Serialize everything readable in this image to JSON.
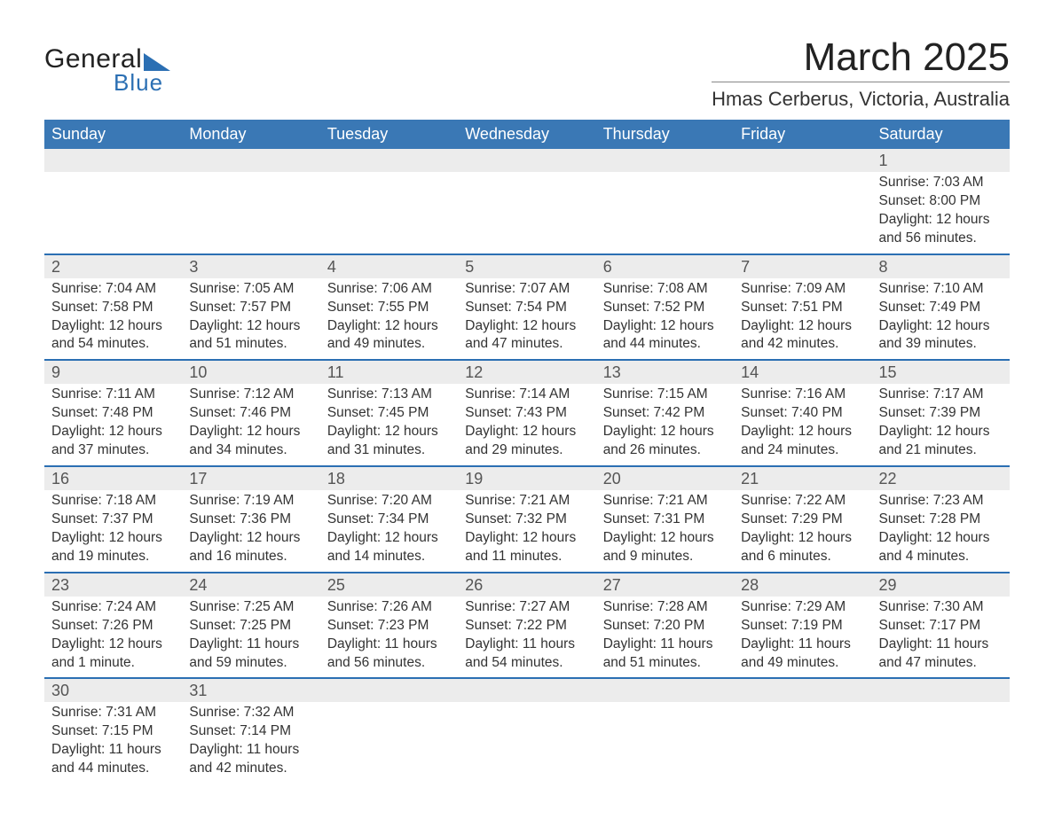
{
  "brand": {
    "general": "General",
    "blue": "Blue"
  },
  "title": "March 2025",
  "location": "Hmas Cerberus, Victoria, Australia",
  "colors": {
    "header_bg": "#3a78b5",
    "header_text": "#ffffff",
    "row_separator": "#2b6fb3",
    "daynum_bg": "#ececec",
    "text": "#333333"
  },
  "weekdays": [
    "Sunday",
    "Monday",
    "Tuesday",
    "Wednesday",
    "Thursday",
    "Friday",
    "Saturday"
  ],
  "weeks": [
    [
      null,
      null,
      null,
      null,
      null,
      null,
      {
        "d": "1",
        "sr": "Sunrise: 7:03 AM",
        "ss": "Sunset: 8:00 PM",
        "dl": "Daylight: 12 hours and 56 minutes."
      }
    ],
    [
      {
        "d": "2",
        "sr": "Sunrise: 7:04 AM",
        "ss": "Sunset: 7:58 PM",
        "dl": "Daylight: 12 hours and 54 minutes."
      },
      {
        "d": "3",
        "sr": "Sunrise: 7:05 AM",
        "ss": "Sunset: 7:57 PM",
        "dl": "Daylight: 12 hours and 51 minutes."
      },
      {
        "d": "4",
        "sr": "Sunrise: 7:06 AM",
        "ss": "Sunset: 7:55 PM",
        "dl": "Daylight: 12 hours and 49 minutes."
      },
      {
        "d": "5",
        "sr": "Sunrise: 7:07 AM",
        "ss": "Sunset: 7:54 PM",
        "dl": "Daylight: 12 hours and 47 minutes."
      },
      {
        "d": "6",
        "sr": "Sunrise: 7:08 AM",
        "ss": "Sunset: 7:52 PM",
        "dl": "Daylight: 12 hours and 44 minutes."
      },
      {
        "d": "7",
        "sr": "Sunrise: 7:09 AM",
        "ss": "Sunset: 7:51 PM",
        "dl": "Daylight: 12 hours and 42 minutes."
      },
      {
        "d": "8",
        "sr": "Sunrise: 7:10 AM",
        "ss": "Sunset: 7:49 PM",
        "dl": "Daylight: 12 hours and 39 minutes."
      }
    ],
    [
      {
        "d": "9",
        "sr": "Sunrise: 7:11 AM",
        "ss": "Sunset: 7:48 PM",
        "dl": "Daylight: 12 hours and 37 minutes."
      },
      {
        "d": "10",
        "sr": "Sunrise: 7:12 AM",
        "ss": "Sunset: 7:46 PM",
        "dl": "Daylight: 12 hours and 34 minutes."
      },
      {
        "d": "11",
        "sr": "Sunrise: 7:13 AM",
        "ss": "Sunset: 7:45 PM",
        "dl": "Daylight: 12 hours and 31 minutes."
      },
      {
        "d": "12",
        "sr": "Sunrise: 7:14 AM",
        "ss": "Sunset: 7:43 PM",
        "dl": "Daylight: 12 hours and 29 minutes."
      },
      {
        "d": "13",
        "sr": "Sunrise: 7:15 AM",
        "ss": "Sunset: 7:42 PM",
        "dl": "Daylight: 12 hours and 26 minutes."
      },
      {
        "d": "14",
        "sr": "Sunrise: 7:16 AM",
        "ss": "Sunset: 7:40 PM",
        "dl": "Daylight: 12 hours and 24 minutes."
      },
      {
        "d": "15",
        "sr": "Sunrise: 7:17 AM",
        "ss": "Sunset: 7:39 PM",
        "dl": "Daylight: 12 hours and 21 minutes."
      }
    ],
    [
      {
        "d": "16",
        "sr": "Sunrise: 7:18 AM",
        "ss": "Sunset: 7:37 PM",
        "dl": "Daylight: 12 hours and 19 minutes."
      },
      {
        "d": "17",
        "sr": "Sunrise: 7:19 AM",
        "ss": "Sunset: 7:36 PM",
        "dl": "Daylight: 12 hours and 16 minutes."
      },
      {
        "d": "18",
        "sr": "Sunrise: 7:20 AM",
        "ss": "Sunset: 7:34 PM",
        "dl": "Daylight: 12 hours and 14 minutes."
      },
      {
        "d": "19",
        "sr": "Sunrise: 7:21 AM",
        "ss": "Sunset: 7:32 PM",
        "dl": "Daylight: 12 hours and 11 minutes."
      },
      {
        "d": "20",
        "sr": "Sunrise: 7:21 AM",
        "ss": "Sunset: 7:31 PM",
        "dl": "Daylight: 12 hours and 9 minutes."
      },
      {
        "d": "21",
        "sr": "Sunrise: 7:22 AM",
        "ss": "Sunset: 7:29 PM",
        "dl": "Daylight: 12 hours and 6 minutes."
      },
      {
        "d": "22",
        "sr": "Sunrise: 7:23 AM",
        "ss": "Sunset: 7:28 PM",
        "dl": "Daylight: 12 hours and 4 minutes."
      }
    ],
    [
      {
        "d": "23",
        "sr": "Sunrise: 7:24 AM",
        "ss": "Sunset: 7:26 PM",
        "dl": "Daylight: 12 hours and 1 minute."
      },
      {
        "d": "24",
        "sr": "Sunrise: 7:25 AM",
        "ss": "Sunset: 7:25 PM",
        "dl": "Daylight: 11 hours and 59 minutes."
      },
      {
        "d": "25",
        "sr": "Sunrise: 7:26 AM",
        "ss": "Sunset: 7:23 PM",
        "dl": "Daylight: 11 hours and 56 minutes."
      },
      {
        "d": "26",
        "sr": "Sunrise: 7:27 AM",
        "ss": "Sunset: 7:22 PM",
        "dl": "Daylight: 11 hours and 54 minutes."
      },
      {
        "d": "27",
        "sr": "Sunrise: 7:28 AM",
        "ss": "Sunset: 7:20 PM",
        "dl": "Daylight: 11 hours and 51 minutes."
      },
      {
        "d": "28",
        "sr": "Sunrise: 7:29 AM",
        "ss": "Sunset: 7:19 PM",
        "dl": "Daylight: 11 hours and 49 minutes."
      },
      {
        "d": "29",
        "sr": "Sunrise: 7:30 AM",
        "ss": "Sunset: 7:17 PM",
        "dl": "Daylight: 11 hours and 47 minutes."
      }
    ],
    [
      {
        "d": "30",
        "sr": "Sunrise: 7:31 AM",
        "ss": "Sunset: 7:15 PM",
        "dl": "Daylight: 11 hours and 44 minutes."
      },
      {
        "d": "31",
        "sr": "Sunrise: 7:32 AM",
        "ss": "Sunset: 7:14 PM",
        "dl": "Daylight: 11 hours and 42 minutes."
      },
      null,
      null,
      null,
      null,
      null
    ]
  ]
}
